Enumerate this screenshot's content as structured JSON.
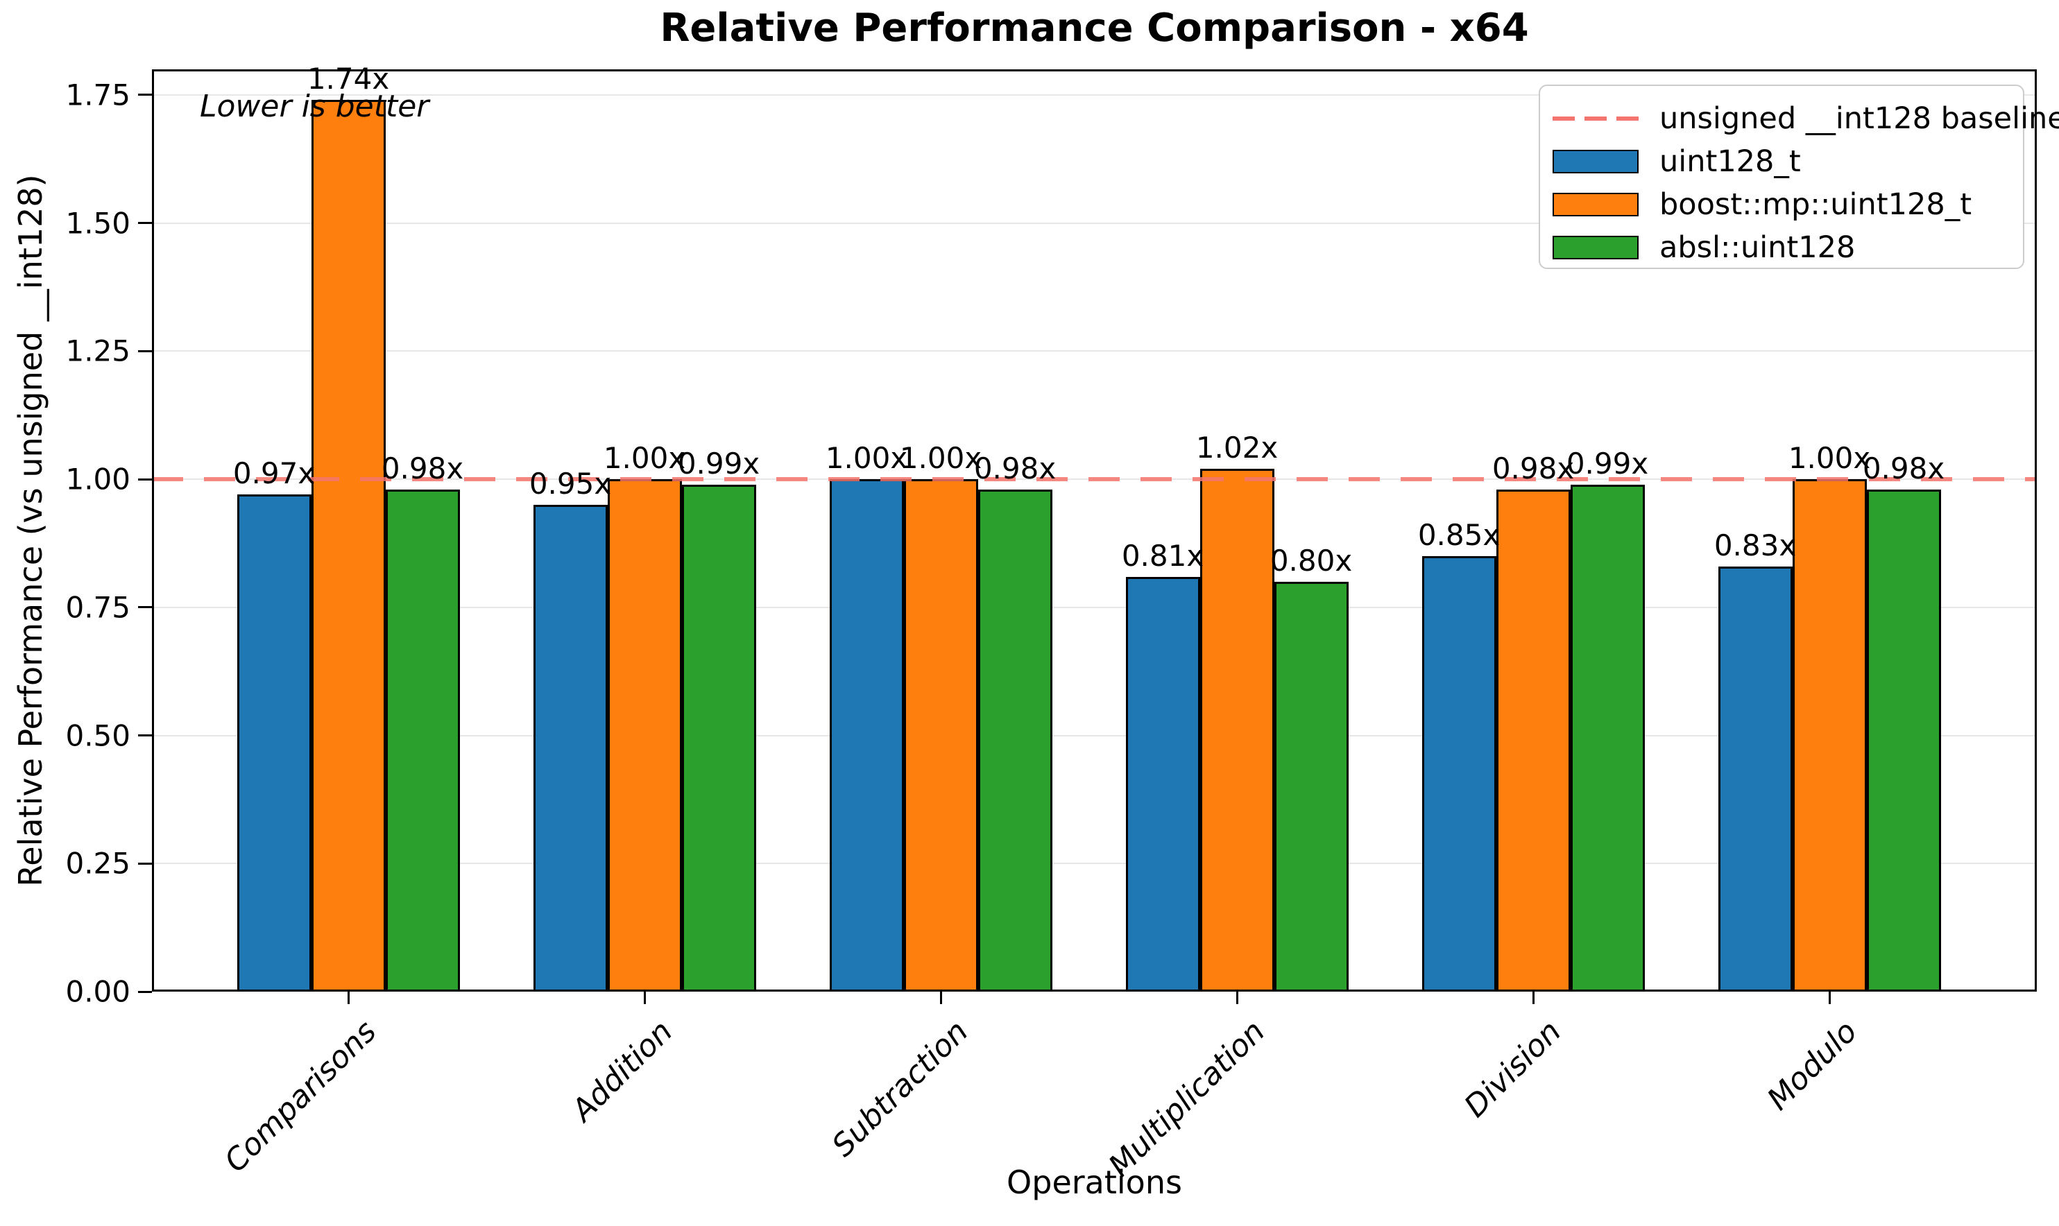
{
  "chart_data": {
    "type": "bar",
    "title": "Relative Performance Comparison - x64",
    "xlabel": "Operations",
    "ylabel": "Relative Performance (vs unsigned __int128)",
    "annotation": "Lower is better",
    "categories": [
      "Comparisons",
      "Addition",
      "Subtraction",
      "Multiplication",
      "Division",
      "Modulo"
    ],
    "series": [
      {
        "name": "uint128_t",
        "color": "#1f77b4",
        "values": [
          0.97,
          0.95,
          1.0,
          0.81,
          0.85,
          0.83
        ],
        "labels": [
          "0.97x",
          "0.95x",
          "1.00x",
          "0.81x",
          "0.85x",
          "0.83x"
        ]
      },
      {
        "name": "boost::mp::uint128_t",
        "color": "#ff7f0e",
        "values": [
          1.74,
          1.0,
          1.0,
          1.02,
          0.98,
          1.0
        ],
        "labels": [
          "1.74x",
          "1.00x",
          "1.00x",
          "1.02x",
          "0.98x",
          "1.00x"
        ]
      },
      {
        "name": "absl::uint128",
        "color": "#2ca02c",
        "values": [
          0.98,
          0.99,
          0.98,
          0.8,
          0.99,
          0.98
        ],
        "labels": [
          "0.98x",
          "0.99x",
          "0.98x",
          "0.80x",
          "0.99x",
          "0.98x"
        ]
      }
    ],
    "baseline": {
      "label": "unsigned __int128 baseline",
      "value": 1.0,
      "color": "#f4756d"
    },
    "ylim": [
      0,
      1.8
    ],
    "ytick_values": [
      0.0,
      0.25,
      0.5,
      0.75,
      1.0,
      1.25,
      1.5,
      1.75
    ],
    "ytick_labels": [
      "0.00",
      "0.25",
      "0.50",
      "0.75",
      "1.00",
      "1.25",
      "1.50",
      "1.75"
    ],
    "grid": true,
    "legend_position": "upper right"
  }
}
